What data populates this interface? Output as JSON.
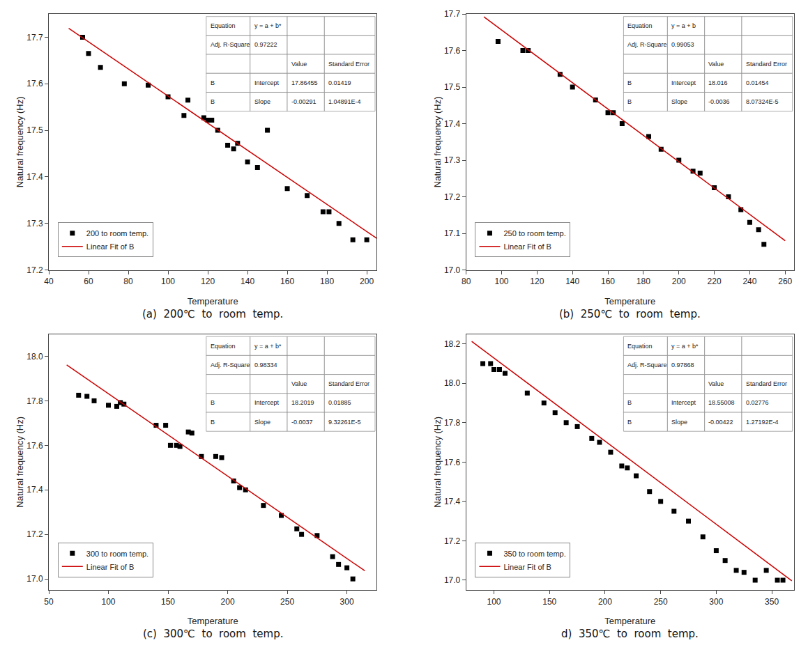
{
  "chart_data": [
    {
      "type": "scatter",
      "title": "(a)  200℃  to  room  temp.",
      "xlabel": "Temperature",
      "ylabel": "Natural frequency (Hz)",
      "xlim": [
        40,
        205
      ],
      "ylim": [
        17.2,
        17.75
      ],
      "xticks": [
        40,
        60,
        80,
        100,
        120,
        140,
        160,
        180,
        200
      ],
      "yticks": [
        17.2,
        17.3,
        17.4,
        17.5,
        17.6,
        17.7
      ],
      "grid": false,
      "legend": "lower left",
      "table": [
        [
          "Equation",
          "y = a + b*",
          null,
          null
        ],
        [
          "Adj. R-Square",
          "0.97222",
          null,
          null
        ],
        [
          null,
          null,
          "Value",
          "Standard Error"
        ],
        [
          "B",
          "Intercept",
          "17.86455",
          "0.01419"
        ],
        [
          "B",
          "Slope",
          "-0.00291",
          "1.04891E-4"
        ]
      ],
      "series": [
        {
          "name": "200 to room temp.",
          "type": "scatter",
          "marker": "square",
          "color": "#000000",
          "x": [
            57,
            60,
            66,
            78,
            90,
            100,
            108,
            110,
            118,
            120,
            122,
            125,
            130,
            133,
            135,
            140,
            145,
            150,
            160,
            170,
            178,
            181,
            186,
            193,
            200
          ],
          "values": [
            17.7,
            17.665,
            17.635,
            17.6,
            17.597,
            17.572,
            17.532,
            17.565,
            17.527,
            17.522,
            17.522,
            17.5,
            17.468,
            17.46,
            17.472,
            17.432,
            17.42,
            17.5,
            17.375,
            17.36,
            17.325,
            17.325,
            17.3,
            17.265,
            17.265
          ]
        },
        {
          "name": "Linear Fit of B",
          "type": "line",
          "color": "#cc0000",
          "x": [
            50,
            205
          ],
          "values": [
            17.71905,
            17.268
          ]
        }
      ]
    },
    {
      "type": "scatter",
      "title": "(b)  250℃  to  room  temp.",
      "xlabel": "Temperature",
      "ylabel": "Natural frequency (Hz)",
      "xlim": [
        80,
        265
      ],
      "ylim": [
        17.0,
        17.7
      ],
      "xticks": [
        80,
        100,
        120,
        140,
        160,
        180,
        200,
        220,
        240,
        260
      ],
      "yticks": [
        {
          "value": 17.0,
          "label": "17.0"
        },
        17.1,
        17.2,
        17.3,
        17.4,
        17.5,
        17.6,
        17.7
      ],
      "grid": false,
      "legend": "lower left",
      "table": [
        [
          "Equation",
          "y = a + b",
          null,
          null
        ],
        [
          "Adj. R-Square",
          "0.99053",
          null,
          null
        ],
        [
          null,
          null,
          "Value",
          "Standard Error"
        ],
        [
          "B",
          "Intercept",
          "18.016",
          "0.01454"
        ],
        [
          "B",
          "Slope",
          "-0.0036",
          "8.07324E-5"
        ]
      ],
      "series": [
        {
          "name": "250 to room temp.",
          "type": "scatter",
          "marker": "square",
          "color": "#000000",
          "x": [
            98,
            112,
            115,
            133,
            140,
            153,
            160,
            163,
            168,
            183,
            190,
            200,
            208,
            212,
            220,
            228,
            235,
            240,
            245,
            248
          ],
          "values": [
            17.625,
            17.6,
            17.6,
            17.535,
            17.5,
            17.465,
            17.43,
            17.43,
            17.4,
            17.365,
            17.33,
            17.3,
            17.27,
            17.265,
            17.225,
            17.2,
            17.165,
            17.13,
            17.11,
            17.07
          ]
        },
        {
          "name": "Linear Fit of B",
          "type": "line",
          "color": "#cc0000",
          "x": [
            90,
            260
          ],
          "values": [
            17.692,
            17.08
          ]
        }
      ]
    },
    {
      "type": "scatter",
      "title": "(c)  300℃  to  room  temp.",
      "xlabel": "Temperature",
      "ylabel": "Natural frequency (Hz)",
      "xlim": [
        50,
        325
      ],
      "ylim": [
        16.95,
        18.1
      ],
      "xticks": [
        50,
        100,
        150,
        200,
        250,
        300
      ],
      "yticks": [
        {
          "value": 17.0,
          "label": "17.0"
        },
        17.2,
        17.4,
        17.6,
        17.8,
        {
          "value": 18.0,
          "label": "18.0"
        }
      ],
      "grid": false,
      "legend": "lower left",
      "table": [
        [
          "Equation",
          "y = a + b*",
          null,
          null
        ],
        [
          "Adj. R-Square",
          "0.98334",
          null,
          null
        ],
        [
          null,
          null,
          "Value",
          "Standard Error"
        ],
        [
          "B",
          "Intercept",
          "18.2019",
          "0.01885"
        ],
        [
          "B",
          "Slope",
          "-0.0037",
          "9.32261E-5"
        ]
      ],
      "series": [
        {
          "name": "300 to room temp.",
          "type": "scatter",
          "marker": "square",
          "color": "#000000",
          "x": [
            75,
            82,
            88,
            100,
            107,
            110,
            113,
            140,
            148,
            152,
            157,
            160,
            167,
            170,
            178,
            190,
            195,
            205,
            210,
            215,
            230,
            245,
            258,
            262,
            275,
            288,
            293,
            300,
            305
          ],
          "values": [
            17.825,
            17.82,
            17.8,
            17.78,
            17.775,
            17.792,
            17.785,
            17.69,
            17.69,
            17.6,
            17.6,
            17.595,
            17.66,
            17.655,
            17.55,
            17.55,
            17.545,
            17.44,
            17.41,
            17.4,
            17.33,
            17.285,
            17.225,
            17.2,
            17.195,
            17.1,
            17.065,
            17.05,
            17.0
          ]
        },
        {
          "name": "Linear Fit of B",
          "type": "line",
          "color": "#cc0000",
          "x": [
            65,
            315
          ],
          "values": [
            17.9614,
            17.0364
          ]
        }
      ]
    },
    {
      "type": "scatter",
      "title": "d)  350℃  to  room  temp.",
      "xlabel": "Temperature",
      "ylabel": "Natural frequency (Hz)",
      "xlim": [
        75,
        370
      ],
      "ylim": [
        16.95,
        18.25
      ],
      "xticks": [
        100,
        150,
        200,
        250,
        300,
        350
      ],
      "yticks": [
        {
          "value": 17.0,
          "label": "17.0"
        },
        17.2,
        17.4,
        17.6,
        17.8,
        {
          "value": 18.0,
          "label": "18.0"
        },
        18.2
      ],
      "grid": false,
      "legend": "lower left",
      "table": [
        [
          "Equation",
          "y = a + b*",
          null,
          null
        ],
        [
          "Adj. R-Square",
          "0.97868",
          null,
          null
        ],
        [
          null,
          null,
          "Value",
          "Standard Error"
        ],
        [
          "B",
          "Intercept",
          "18.55008",
          "0.02776"
        ],
        [
          "B",
          "Slope",
          "-0.00422",
          "1.27192E-4"
        ]
      ],
      "series": [
        {
          "name": "350 to room temp.",
          "type": "scatter",
          "marker": "square",
          "color": "#000000",
          "x": [
            90,
            97,
            100,
            105,
            110,
            130,
            145,
            155,
            165,
            175,
            188,
            195,
            205,
            215,
            220,
            228,
            240,
            250,
            262,
            275,
            288,
            300,
            308,
            318,
            325,
            335,
            345,
            355,
            360
          ],
          "values": [
            18.1,
            18.1,
            18.07,
            18.07,
            18.05,
            17.95,
            17.9,
            17.85,
            17.8,
            17.78,
            17.72,
            17.7,
            17.65,
            17.58,
            17.57,
            17.53,
            17.45,
            17.4,
            17.35,
            17.3,
            17.22,
            17.15,
            17.1,
            17.05,
            17.04,
            17.0,
            17.05,
            17.0,
            17.0
          ]
        },
        {
          "name": "Linear Fit of B",
          "type": "line",
          "color": "#cc0000",
          "x": [
            80,
            368
          ],
          "values": [
            18.21248,
            16.99712
          ]
        }
      ]
    }
  ]
}
